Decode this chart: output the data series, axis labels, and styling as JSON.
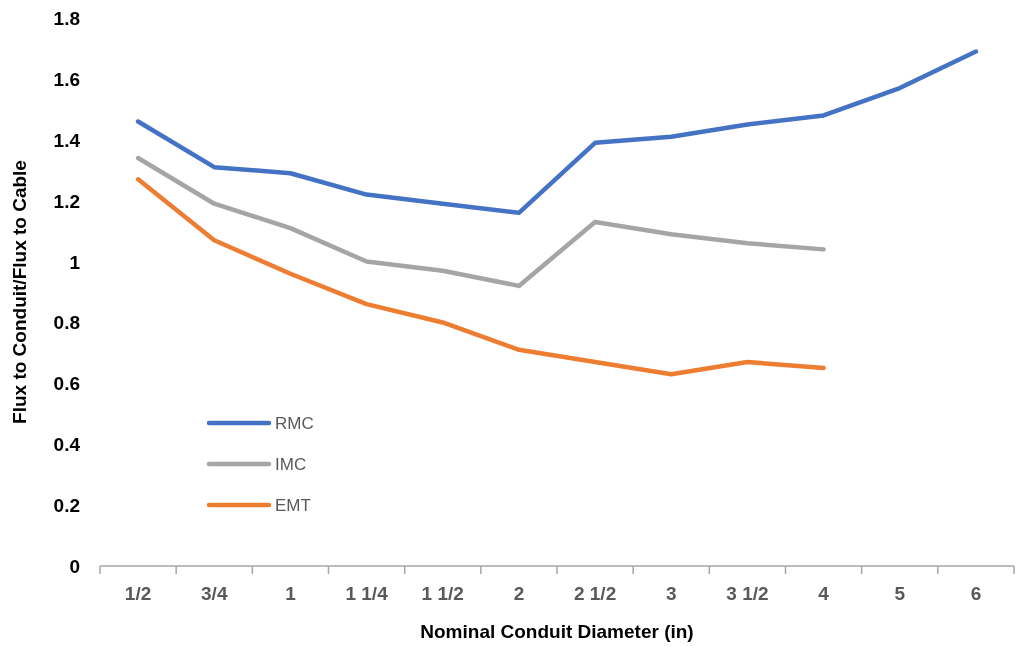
{
  "chart_data": {
    "type": "line",
    "xlabel": "Nominal Conduit Diameter (in)",
    "ylabel": "Flux to Conduit/Flux to Cable",
    "categories": [
      "1/2",
      "3/4",
      "1",
      "1 1/4",
      "1 1/2",
      "2",
      "2 1/2",
      "3",
      "3 1/2",
      "4",
      "5",
      "6"
    ],
    "series": [
      {
        "name": "RMC",
        "color": "#4472c4",
        "values": [
          1.46,
          1.31,
          1.29,
          1.22,
          1.19,
          1.16,
          1.39,
          1.41,
          1.45,
          1.48,
          1.57,
          1.69
        ]
      },
      {
        "name": "IMC",
        "color": "#a5a5a5",
        "values": [
          1.34,
          1.19,
          1.11,
          1.0,
          0.97,
          0.92,
          1.13,
          1.09,
          1.06,
          1.04,
          null,
          null
        ]
      },
      {
        "name": "EMT",
        "color": "#ed7d31",
        "values": [
          1.27,
          1.07,
          0.96,
          0.86,
          0.8,
          0.71,
          0.67,
          0.63,
          0.67,
          0.65,
          null,
          null
        ]
      }
    ],
    "ylim": [
      0,
      1.8
    ],
    "yticks": [
      0,
      0.2,
      0.4,
      0.6,
      0.8,
      1,
      1.2,
      1.4,
      1.6,
      1.8
    ],
    "grid": false,
    "legend": "bottom left",
    "marker": "none",
    "line_style": "solid"
  }
}
